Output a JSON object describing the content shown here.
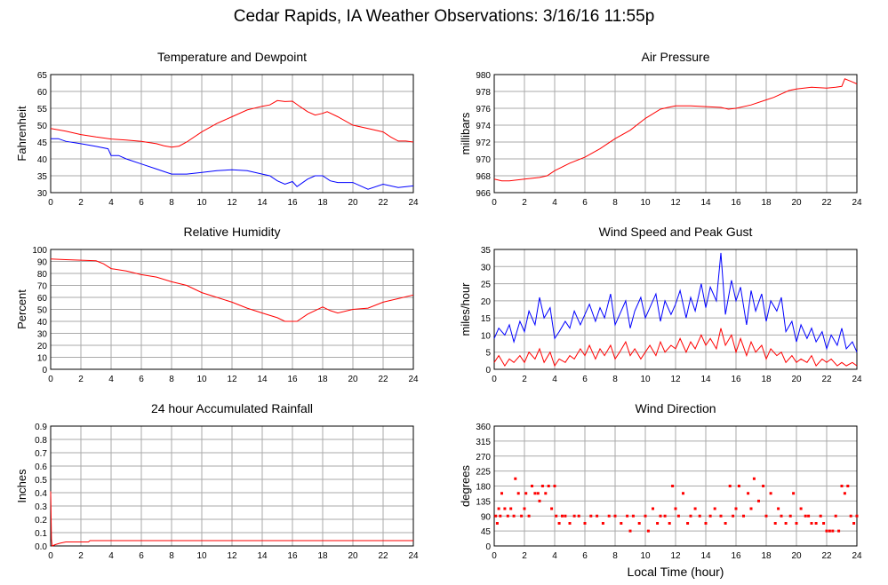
{
  "page": {
    "title": "Cedar Rapids, IA Weather Observations: 3/16/16 11:55p",
    "x_axis_label": "Local Time (hour)"
  },
  "chart_data": [
    {
      "id": "temp",
      "type": "line",
      "title": "Temperature and Dewpoint",
      "ylabel": "Fahrenheit",
      "xlim": [
        0,
        24
      ],
      "ylim": [
        30,
        65
      ],
      "yticks": [
        30,
        35,
        40,
        45,
        50,
        55,
        60,
        65
      ],
      "xticks": [
        0,
        2,
        4,
        6,
        8,
        10,
        12,
        14,
        16,
        18,
        20,
        22,
        24
      ],
      "grid": true,
      "series": [
        {
          "color": "#ff0000",
          "x": [
            0,
            1,
            2,
            3,
            4,
            5,
            6,
            7,
            7.5,
            8,
            8.5,
            9,
            10,
            11,
            12,
            13,
            14,
            14.5,
            15,
            15.5,
            16,
            16.5,
            17,
            17.5,
            18,
            18.3,
            19,
            20,
            21,
            22,
            22.5,
            23,
            23.5,
            24
          ],
          "y": [
            49,
            48.2,
            47.2,
            46.5,
            45.9,
            45.6,
            45.2,
            44.5,
            43.9,
            43.5,
            43.8,
            45,
            48,
            50.5,
            52.5,
            54.5,
            55.6,
            56,
            57.3,
            57,
            57.1,
            55.5,
            54,
            53,
            53.5,
            54,
            52.5,
            50,
            49,
            48,
            46.5,
            45.3,
            45.3,
            45
          ]
        },
        {
          "color": "#0000ff",
          "x": [
            0,
            0.5,
            1,
            2,
            3,
            3.8,
            4,
            4.5,
            5,
            6,
            7,
            8,
            9,
            10,
            11,
            12,
            13,
            14,
            14.5,
            15,
            15.5,
            16,
            16.3,
            17,
            17.5,
            18,
            18.5,
            19,
            20,
            21,
            22,
            23,
            24
          ],
          "y": [
            46,
            46,
            45.2,
            44.5,
            43.7,
            43,
            41,
            41,
            40,
            38.5,
            37,
            35.5,
            35.5,
            36,
            36.5,
            36.8,
            36.5,
            35.5,
            35,
            33.5,
            32.5,
            33.3,
            31.8,
            34,
            35,
            35,
            33.5,
            33,
            33,
            31,
            32.5,
            31.5,
            32
          ]
        }
      ]
    },
    {
      "id": "pressure",
      "type": "line",
      "title": "Air Pressure",
      "ylabel": "millibars",
      "xlim": [
        0,
        24
      ],
      "ylim": [
        966,
        980
      ],
      "yticks": [
        966,
        968,
        970,
        972,
        974,
        976,
        978,
        980
      ],
      "xticks": [
        0,
        2,
        4,
        6,
        8,
        10,
        12,
        14,
        16,
        18,
        20,
        22,
        24
      ],
      "grid": true,
      "series": [
        {
          "color": "#ff0000",
          "x": [
            0,
            0.5,
            1,
            2,
            3,
            3.5,
            4,
            5,
            6,
            7,
            8,
            9,
            10,
            11,
            11.5,
            12,
            13,
            14,
            15,
            15.5,
            16,
            17,
            18,
            18.5,
            19,
            19.5,
            20,
            21,
            22,
            22.6,
            23,
            23.2,
            23.6,
            24
          ],
          "y": [
            967.6,
            967.4,
            967.4,
            967.6,
            967.8,
            968,
            968.6,
            969.5,
            970.2,
            971.2,
            972.4,
            973.4,
            974.8,
            975.9,
            976.1,
            976.3,
            976.3,
            976.2,
            976.1,
            975.9,
            976,
            976.4,
            977,
            977.3,
            977.7,
            978.1,
            978.3,
            978.5,
            978.4,
            978.5,
            978.6,
            979.5,
            979.2,
            978.9
          ]
        }
      ]
    },
    {
      "id": "humidity",
      "type": "line",
      "title": "Relative Humidity",
      "ylabel": "Percent",
      "xlim": [
        0,
        24
      ],
      "ylim": [
        0,
        100
      ],
      "yticks": [
        0,
        10,
        20,
        30,
        40,
        50,
        60,
        70,
        80,
        90,
        100
      ],
      "xticks": [
        0,
        2,
        4,
        6,
        8,
        10,
        12,
        14,
        16,
        18,
        20,
        22,
        24
      ],
      "grid": true,
      "series": [
        {
          "color": "#ff0000",
          "x": [
            0,
            1,
            2,
            3,
            3.5,
            4,
            5,
            6,
            7,
            8,
            9,
            10,
            11,
            12,
            13,
            14,
            15,
            15.5,
            16,
            16.3,
            17,
            18,
            18.5,
            19,
            20,
            21,
            22,
            23,
            24
          ],
          "y": [
            92,
            91.5,
            91,
            90.5,
            88,
            84,
            82,
            79,
            77,
            73,
            70,
            64,
            60,
            56,
            51,
            47,
            43,
            40,
            40,
            40,
            46,
            52,
            49,
            47,
            50,
            51,
            56,
            59,
            62
          ]
        }
      ]
    },
    {
      "id": "wind",
      "type": "line",
      "title": "Wind Speed and Peak Gust",
      "ylabel": "miles/hour",
      "xlim": [
        0,
        24
      ],
      "ylim": [
        0,
        35
      ],
      "yticks": [
        0,
        5,
        10,
        15,
        20,
        25,
        30,
        35
      ],
      "xticks": [
        0,
        2,
        4,
        6,
        8,
        10,
        12,
        14,
        16,
        18,
        20,
        22,
        24
      ],
      "grid": true,
      "series": [
        {
          "color": "#0000ff",
          "x": [
            0,
            0.3,
            0.7,
            1,
            1.3,
            1.7,
            2,
            2.3,
            2.7,
            3,
            3.3,
            3.7,
            4,
            4.3,
            4.7,
            5,
            5.3,
            5.7,
            6,
            6.3,
            6.7,
            7,
            7.3,
            7.7,
            8,
            8.3,
            8.7,
            9,
            9.3,
            9.7,
            10,
            10.3,
            10.7,
            11,
            11.3,
            11.7,
            12,
            12.3,
            12.7,
            13,
            13.3,
            13.7,
            14,
            14.3,
            14.7,
            15,
            15.3,
            15.7,
            16,
            16.3,
            16.7,
            17,
            17.3,
            17.7,
            18,
            18.3,
            18.7,
            19,
            19.3,
            19.7,
            20,
            20.3,
            20.7,
            21,
            21.3,
            21.7,
            22,
            22.3,
            22.7,
            23,
            23.3,
            23.7,
            24
          ],
          "y": [
            9,
            12,
            10,
            13,
            8,
            14,
            11,
            17,
            13,
            21,
            15,
            18,
            9,
            11,
            14,
            12,
            17,
            13,
            16,
            19,
            14,
            18,
            15,
            22,
            13,
            16,
            20,
            12,
            17,
            21,
            15,
            18,
            22,
            14,
            20,
            16,
            19,
            23,
            15,
            21,
            17,
            25,
            18,
            24,
            20,
            34,
            16,
            26,
            20,
            24,
            13,
            23,
            17,
            22,
            14,
            20,
            17,
            21,
            11,
            14,
            8,
            13,
            9,
            12,
            8,
            11,
            6,
            10,
            7,
            12,
            6,
            8,
            5
          ]
        },
        {
          "color": "#ff0000",
          "x": [
            0,
            0.3,
            0.7,
            1,
            1.3,
            1.7,
            2,
            2.3,
            2.7,
            3,
            3.3,
            3.7,
            4,
            4.3,
            4.7,
            5,
            5.3,
            5.7,
            6,
            6.3,
            6.7,
            7,
            7.3,
            7.7,
            8,
            8.3,
            8.7,
            9,
            9.3,
            9.7,
            10,
            10.3,
            10.7,
            11,
            11.3,
            11.7,
            12,
            12.3,
            12.7,
            13,
            13.3,
            13.7,
            14,
            14.3,
            14.7,
            15,
            15.3,
            15.7,
            16,
            16.3,
            16.7,
            17,
            17.3,
            17.7,
            18,
            18.3,
            18.7,
            19,
            19.3,
            19.7,
            20,
            20.3,
            20.7,
            21,
            21.3,
            21.7,
            22,
            22.3,
            22.7,
            23,
            23.3,
            23.7,
            24
          ],
          "y": [
            2,
            4,
            1,
            3,
            2,
            4,
            2,
            5,
            3,
            6,
            2,
            5,
            1,
            3,
            2,
            4,
            3,
            6,
            4,
            7,
            3,
            6,
            4,
            7,
            3,
            5,
            8,
            4,
            6,
            3,
            5,
            7,
            4,
            8,
            5,
            7,
            6,
            9,
            5,
            8,
            6,
            10,
            7,
            9,
            6,
            12,
            7,
            10,
            5,
            9,
            4,
            8,
            5,
            7,
            3,
            6,
            4,
            5,
            2,
            4,
            2,
            3,
            2,
            4,
            1,
            3,
            2,
            3,
            1,
            2,
            1,
            2,
            1
          ]
        }
      ]
    },
    {
      "id": "rain",
      "type": "line",
      "title": "24 hour Accumulated Rainfall",
      "ylabel": "Inches",
      "xlim": [
        0,
        24
      ],
      "ylim": [
        0,
        0.9
      ],
      "yticks": [
        0.0,
        0.1,
        0.2,
        0.3,
        0.4,
        0.5,
        0.6,
        0.7,
        0.8,
        0.9
      ],
      "ytick_labels": [
        "0.0",
        "0.1",
        "0.2",
        "0.3",
        "0.4",
        "0.5",
        "0.6",
        "0.7",
        "0.8",
        "0.9"
      ],
      "xticks": [
        0,
        2,
        4,
        6,
        8,
        10,
        12,
        14,
        16,
        18,
        20,
        22,
        24
      ],
      "grid": true,
      "series": [
        {
          "color": "#ff0000",
          "x": [
            0,
            0.02,
            0.05,
            0.1,
            0.3,
            0.6,
            1,
            2,
            2.5,
            2.6,
            24
          ],
          "y": [
            0.41,
            0.3,
            0.05,
            0.0,
            0.01,
            0.02,
            0.03,
            0.03,
            0.03,
            0.04,
            0.04
          ]
        }
      ]
    },
    {
      "id": "direction",
      "type": "scatter",
      "title": "Wind Direction",
      "ylabel": "degrees",
      "xlim": [
        0,
        24
      ],
      "ylim": [
        0,
        360
      ],
      "yticks": [
        0,
        45,
        90,
        135,
        180,
        225,
        270,
        315,
        360
      ],
      "xticks": [
        0,
        2,
        4,
        6,
        8,
        10,
        12,
        14,
        16,
        18,
        20,
        22,
        24
      ],
      "xlabel": "Local Time (hour)",
      "grid": true,
      "series": [
        {
          "color": "#ff0000",
          "x": [
            0.1,
            0.2,
            0.3,
            0.4,
            0.5,
            0.7,
            0.9,
            1.1,
            1.3,
            1.4,
            1.6,
            1.8,
            2.0,
            2.1,
            2.3,
            2.5,
            2.7,
            2.9,
            3.0,
            3.2,
            3.4,
            3.6,
            3.8,
            4.0,
            4.1,
            4.3,
            4.5,
            4.7,
            5.0,
            5.3,
            5.6,
            6.0,
            6.4,
            6.8,
            7.2,
            7.6,
            8.0,
            8.4,
            8.8,
            9.0,
            9.2,
            9.6,
            10.0,
            10.2,
            10.5,
            10.8,
            11.0,
            11.3,
            11.6,
            11.8,
            12.0,
            12.2,
            12.5,
            12.8,
            13.0,
            13.3,
            13.6,
            14.0,
            14.3,
            14.6,
            15.0,
            15.3,
            15.6,
            15.8,
            16.0,
            16.2,
            16.5,
            16.8,
            17.0,
            17.2,
            17.5,
            17.8,
            18.0,
            18.3,
            18.6,
            18.8,
            19.0,
            19.3,
            19.6,
            19.8,
            20.0,
            20.3,
            20.6,
            20.8,
            21.0,
            21.3,
            21.6,
            21.8,
            22.0,
            22.2,
            22.4,
            22.6,
            22.8,
            23.0,
            23.2,
            23.4,
            23.6,
            23.8,
            24.0
          ],
          "y": [
            90,
            68,
            112,
            90,
            158,
            112,
            90,
            112,
            90,
            202,
            158,
            90,
            112,
            158,
            90,
            180,
            158,
            158,
            135,
            180,
            158,
            180,
            112,
            180,
            90,
            68,
            90,
            90,
            68,
            90,
            90,
            68,
            90,
            90,
            68,
            90,
            90,
            68,
            90,
            45,
            90,
            68,
            90,
            45,
            112,
            68,
            90,
            90,
            68,
            180,
            112,
            90,
            158,
            68,
            90,
            112,
            90,
            68,
            90,
            112,
            90,
            68,
            180,
            90,
            112,
            180,
            90,
            158,
            112,
            202,
            135,
            180,
            90,
            158,
            68,
            112,
            90,
            68,
            90,
            158,
            68,
            112,
            90,
            90,
            68,
            68,
            90,
            68,
            45,
            45,
            45,
            90,
            45,
            180,
            158,
            180,
            90,
            68,
            90
          ]
        }
      ]
    }
  ]
}
